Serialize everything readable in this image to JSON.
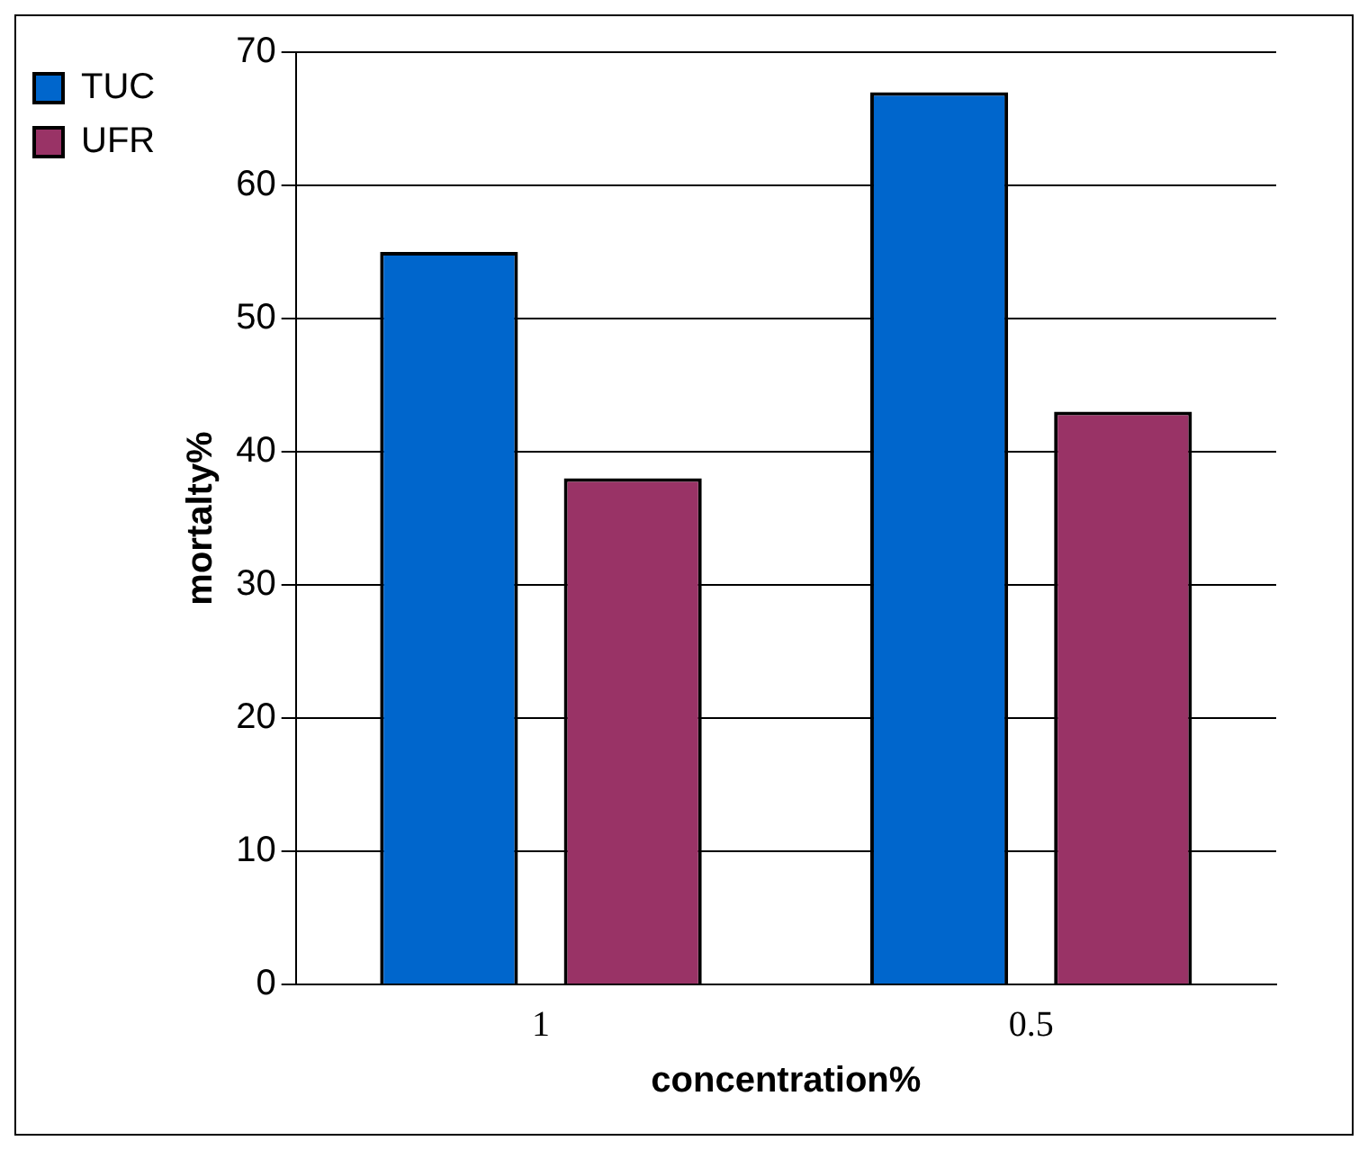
{
  "chart_data": {
    "type": "bar",
    "xlabel": "concentration%",
    "ylabel": "mortalty%",
    "categories": [
      "1",
      "0.5"
    ],
    "series": [
      {
        "name": "TUC",
        "color": "#0066cc",
        "values": [
          55,
          67
        ]
      },
      {
        "name": "UFR",
        "color": "#993366",
        "values": [
          38,
          43
        ]
      }
    ],
    "ylim": [
      0,
      70
    ],
    "yticks": [
      0,
      10,
      20,
      30,
      40,
      50,
      60,
      70
    ],
    "grid": "y",
    "legend": "top left"
  }
}
